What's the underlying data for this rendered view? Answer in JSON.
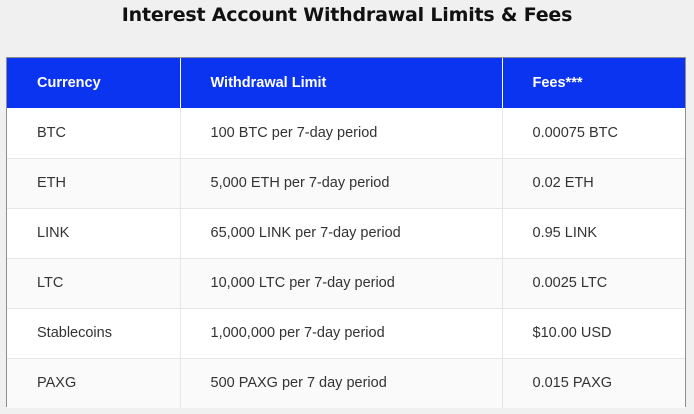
{
  "title": "Interest Account Withdrawal Limits & Fees",
  "table": {
    "headers": [
      "Currency",
      "Withdrawal Limit",
      "Fees***"
    ],
    "rows": [
      [
        "BTC",
        "100 BTC per 7-day period",
        "0.00075 BTC"
      ],
      [
        "ETH",
        "5,000 ETH per 7-day period",
        "0.02 ETH"
      ],
      [
        "LINK",
        "65,000 LINK per 7-day period",
        "0.95 LINK"
      ],
      [
        "LTC",
        "10,000 LTC per 7-day period",
        "0.0025 LTC"
      ],
      [
        "Stablecoins",
        "1,000,000 per 7-day period",
        "$10.00 USD"
      ],
      [
        "PAXG",
        "500 PAXG per 7 day period",
        "0.015 PAXG"
      ]
    ]
  },
  "colors": {
    "header_background": "#0b34f0",
    "header_text": "#ffffff",
    "page_background": "#f0f0f0"
  }
}
